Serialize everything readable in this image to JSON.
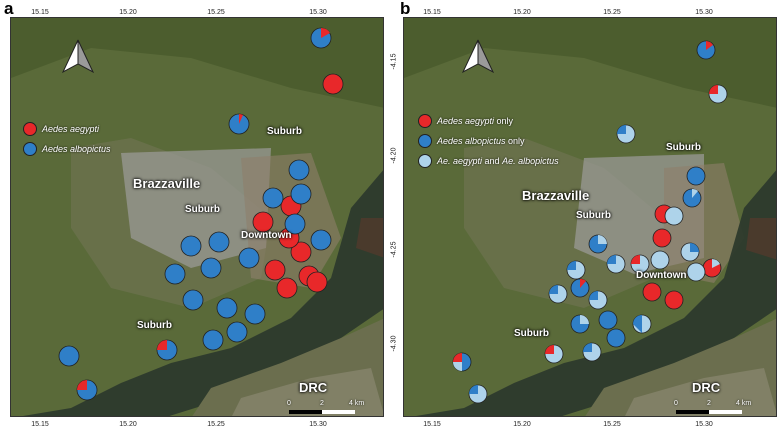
{
  "panels": [
    {
      "letter": "a",
      "labels": {
        "suburb": "Suburb",
        "brazzaville": "Brazzaville",
        "downtown": "Downtown",
        "drc": "DRC"
      },
      "legend": [
        {
          "italic": "Aedes aegypti",
          "suffix": "",
          "color": "#e8282a"
        },
        {
          "italic": "Aedes albopictus",
          "suffix": "",
          "color": "#2f7fc8"
        }
      ]
    },
    {
      "letter": "b",
      "labels": {
        "suburb": "Suburb",
        "brazzaville": "Brazzaville",
        "downtown": "Downtown",
        "drc": "DRC"
      },
      "legend": [
        {
          "italic": "Aedes aegypti",
          "suffix": " only",
          "color": "#e8282a"
        },
        {
          "italic": "Aedes albopictus",
          "suffix": " only",
          "color": "#2f7fc8"
        },
        {
          "italic": "Ae. aegypti",
          "suffix": " and ",
          "italic2": "Ae. albopictus",
          "color": "#aed3ea"
        }
      ]
    }
  ],
  "lon_ticks": [
    "15.15",
    "15.20",
    "15.25",
    "15.30"
  ],
  "lat_ticks": [
    "-4.15",
    "-4.20",
    "-4.25",
    "-4.30"
  ],
  "scale": {
    "zero": "0",
    "two": "2",
    "four": "4 km"
  },
  "colors": {
    "aegypti": "#e8282a",
    "albopictus": "#2f7fc8",
    "both": "#aed3ea"
  }
}
